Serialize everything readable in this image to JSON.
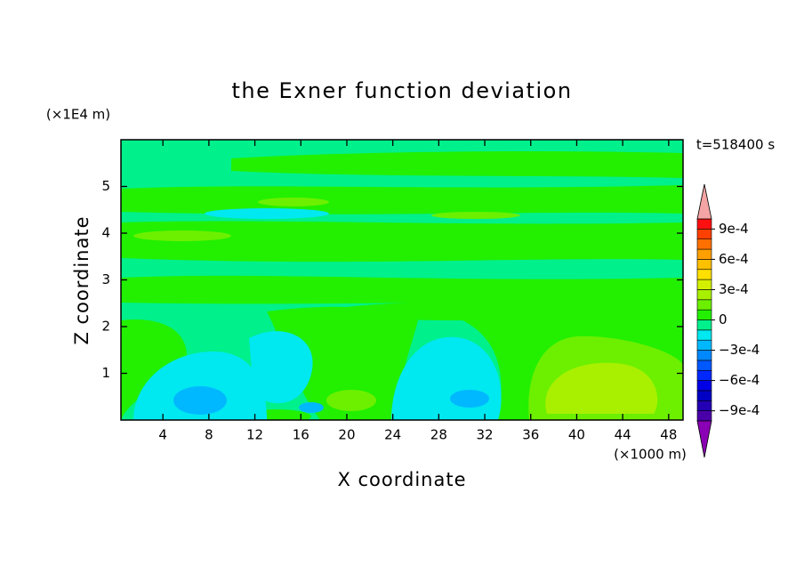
{
  "chart_data": {
    "type": "contour",
    "title": "the Exner function deviation",
    "xlabel": "X coordinate",
    "ylabel": "Z coordinate",
    "x_unit": "(×1000 m)",
    "y_unit": "(×1E4 m)",
    "time_label": "t=518400 s",
    "xlim": [
      0.35,
      49.25
    ],
    "ylim": [
      0,
      6
    ],
    "xticks": [
      4,
      8,
      12,
      16,
      20,
      24,
      28,
      32,
      36,
      40,
      44,
      48
    ],
    "yticks": [
      1,
      2,
      3,
      4,
      5
    ],
    "colorbar": {
      "levels": [
        -0.001,
        -0.0009,
        -0.0008,
        -0.0007,
        -0.0006,
        -0.0005,
        -0.0004,
        -0.0003,
        -0.0002,
        -0.0001,
        0,
        0.0001,
        0.0002,
        0.0003,
        0.0004,
        0.0005,
        0.0006,
        0.0007,
        0.0008,
        0.0009,
        0.001
      ],
      "colors": [
        "#4a00a8",
        "#2400b4",
        "#0000c4",
        "#0000e6",
        "#0028ff",
        "#0058ff",
        "#0088ff",
        "#00b8ff",
        "#00e8f0",
        "#00f08c",
        "#22f000",
        "#6cf000",
        "#a8f000",
        "#d4f000",
        "#ffe000",
        "#ffc000",
        "#ffa000",
        "#ff7000",
        "#ff4000",
        "#ff1010"
      ],
      "under_color": "#8a00b4",
      "over_color": "#f4a4a4",
      "ticks": [
        {
          "value": 0.0009,
          "label": "9e-4"
        },
        {
          "value": 0.0006,
          "label": "6e-4"
        },
        {
          "value": 0.0003,
          "label": "3e-4"
        },
        0,
        {
          "value": -0.0003,
          "label": "−3e-4"
        },
        {
          "value": -0.0006,
          "label": "−6e-4"
        },
        {
          "value": -0.0009,
          "label": "−9e-4"
        }
      ]
    }
  }
}
